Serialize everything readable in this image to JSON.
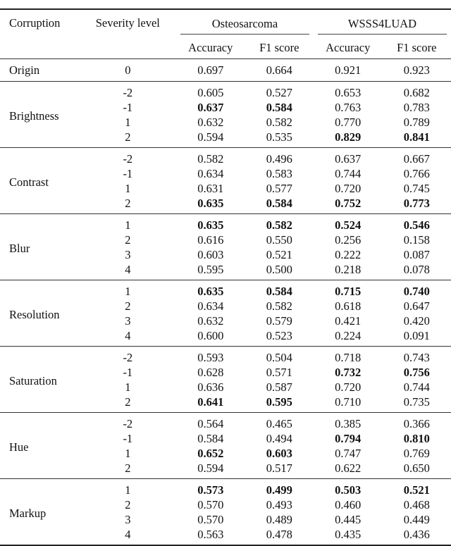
{
  "header": {
    "corruption": "Corruption",
    "severity": "Severity level",
    "datasets": [
      "Osteosarcoma",
      "WSSS4LUAD"
    ],
    "metrics": [
      "Accuracy",
      "F1 score",
      "Accuracy",
      "F1 score"
    ]
  },
  "origin": {
    "name": "Origin",
    "level": "0",
    "values": [
      "0.697",
      "0.664",
      "0.921",
      "0.923"
    ]
  },
  "groups": [
    {
      "name": "Brightness",
      "rows": [
        {
          "level": "-2",
          "values": [
            "0.605",
            "0.527",
            "0.653",
            "0.682"
          ],
          "bold": []
        },
        {
          "level": "-1",
          "values": [
            "0.637",
            "0.584",
            "0.763",
            "0.783"
          ],
          "bold": [
            0,
            1
          ]
        },
        {
          "level": "1",
          "values": [
            "0.632",
            "0.582",
            "0.770",
            "0.789"
          ],
          "bold": []
        },
        {
          "level": "2",
          "values": [
            "0.594",
            "0.535",
            "0.829",
            "0.841"
          ],
          "bold": [
            2,
            3
          ]
        }
      ]
    },
    {
      "name": "Contrast",
      "rows": [
        {
          "level": "-2",
          "values": [
            "0.582",
            "0.496",
            "0.637",
            "0.667"
          ],
          "bold": []
        },
        {
          "level": "-1",
          "values": [
            "0.634",
            "0.583",
            "0.744",
            "0.766"
          ],
          "bold": []
        },
        {
          "level": "1",
          "values": [
            "0.631",
            "0.577",
            "0.720",
            "0.745"
          ],
          "bold": []
        },
        {
          "level": "2",
          "values": [
            "0.635",
            "0.584",
            "0.752",
            "0.773"
          ],
          "bold": [
            0,
            1,
            2,
            3
          ]
        }
      ]
    },
    {
      "name": "Blur",
      "rows": [
        {
          "level": "1",
          "values": [
            "0.635",
            "0.582",
            "0.524",
            "0.546"
          ],
          "bold": [
            0,
            1,
            2,
            3
          ]
        },
        {
          "level": "2",
          "values": [
            "0.616",
            "0.550",
            "0.256",
            "0.158"
          ],
          "bold": []
        },
        {
          "level": "3",
          "values": [
            "0.603",
            "0.521",
            "0.222",
            "0.087"
          ],
          "bold": []
        },
        {
          "level": "4",
          "values": [
            "0.595",
            "0.500",
            "0.218",
            "0.078"
          ],
          "bold": []
        }
      ]
    },
    {
      "name": "Resolution",
      "rows": [
        {
          "level": "1",
          "values": [
            "0.635",
            "0.584",
            "0.715",
            "0.740"
          ],
          "bold": [
            0,
            1,
            2,
            3
          ]
        },
        {
          "level": "2",
          "values": [
            "0.634",
            "0.582",
            "0.618",
            "0.647"
          ],
          "bold": []
        },
        {
          "level": "3",
          "values": [
            "0.632",
            "0.579",
            "0.421",
            "0.420"
          ],
          "bold": []
        },
        {
          "level": "4",
          "values": [
            "0.600",
            "0.523",
            "0.224",
            "0.091"
          ],
          "bold": []
        }
      ]
    },
    {
      "name": "Saturation",
      "rows": [
        {
          "level": "-2",
          "values": [
            "0.593",
            "0.504",
            "0.718",
            "0.743"
          ],
          "bold": []
        },
        {
          "level": "-1",
          "values": [
            "0.628",
            "0.571",
            "0.732",
            "0.756"
          ],
          "bold": [
            2,
            3
          ]
        },
        {
          "level": "1",
          "values": [
            "0.636",
            "0.587",
            "0.720",
            "0.744"
          ],
          "bold": []
        },
        {
          "level": "2",
          "values": [
            "0.641",
            "0.595",
            "0.710",
            "0.735"
          ],
          "bold": [
            0,
            1
          ]
        }
      ]
    },
    {
      "name": "Hue",
      "rows": [
        {
          "level": "-2",
          "values": [
            "0.564",
            "0.465",
            "0.385",
            "0.366"
          ],
          "bold": []
        },
        {
          "level": "-1",
          "values": [
            "0.584",
            "0.494",
            "0.794",
            "0.810"
          ],
          "bold": [
            2,
            3
          ]
        },
        {
          "level": "1",
          "values": [
            "0.652",
            "0.603",
            "0.747",
            "0.769"
          ],
          "bold": [
            0,
            1
          ]
        },
        {
          "level": "2",
          "values": [
            "0.594",
            "0.517",
            "0.622",
            "0.650"
          ],
          "bold": []
        }
      ]
    },
    {
      "name": "Markup",
      "rows": [
        {
          "level": "1",
          "values": [
            "0.573",
            "0.499",
            "0.503",
            "0.521"
          ],
          "bold": [
            0,
            1,
            2,
            3
          ]
        },
        {
          "level": "2",
          "values": [
            "0.570",
            "0.493",
            "0.460",
            "0.468"
          ],
          "bold": []
        },
        {
          "level": "3",
          "values": [
            "0.570",
            "0.489",
            "0.445",
            "0.449"
          ],
          "bold": []
        },
        {
          "level": "4",
          "values": [
            "0.563",
            "0.478",
            "0.435",
            "0.436"
          ],
          "bold": []
        }
      ]
    }
  ]
}
